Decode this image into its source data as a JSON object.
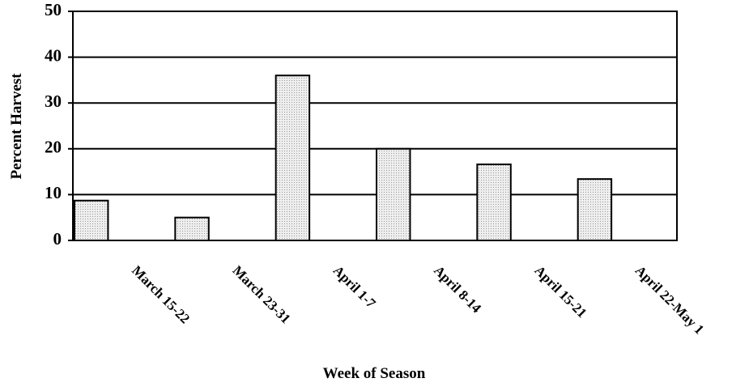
{
  "chart_data": {
    "type": "bar",
    "x_label": "Week of Season",
    "y_label": "Percent Harvest",
    "categories": [
      "March 15-22",
      "March 23-31",
      "April 1-7",
      "April 8-14",
      "April 15-21",
      "April 22-May 1"
    ],
    "values": [
      8.7,
      5,
      36,
      20,
      16.6,
      13.4
    ],
    "color": "#dcdcdc",
    "ylim": [
      0,
      50
    ],
    "yticks": [
      0,
      10,
      20,
      30,
      40,
      50
    ],
    "grid": true
  }
}
